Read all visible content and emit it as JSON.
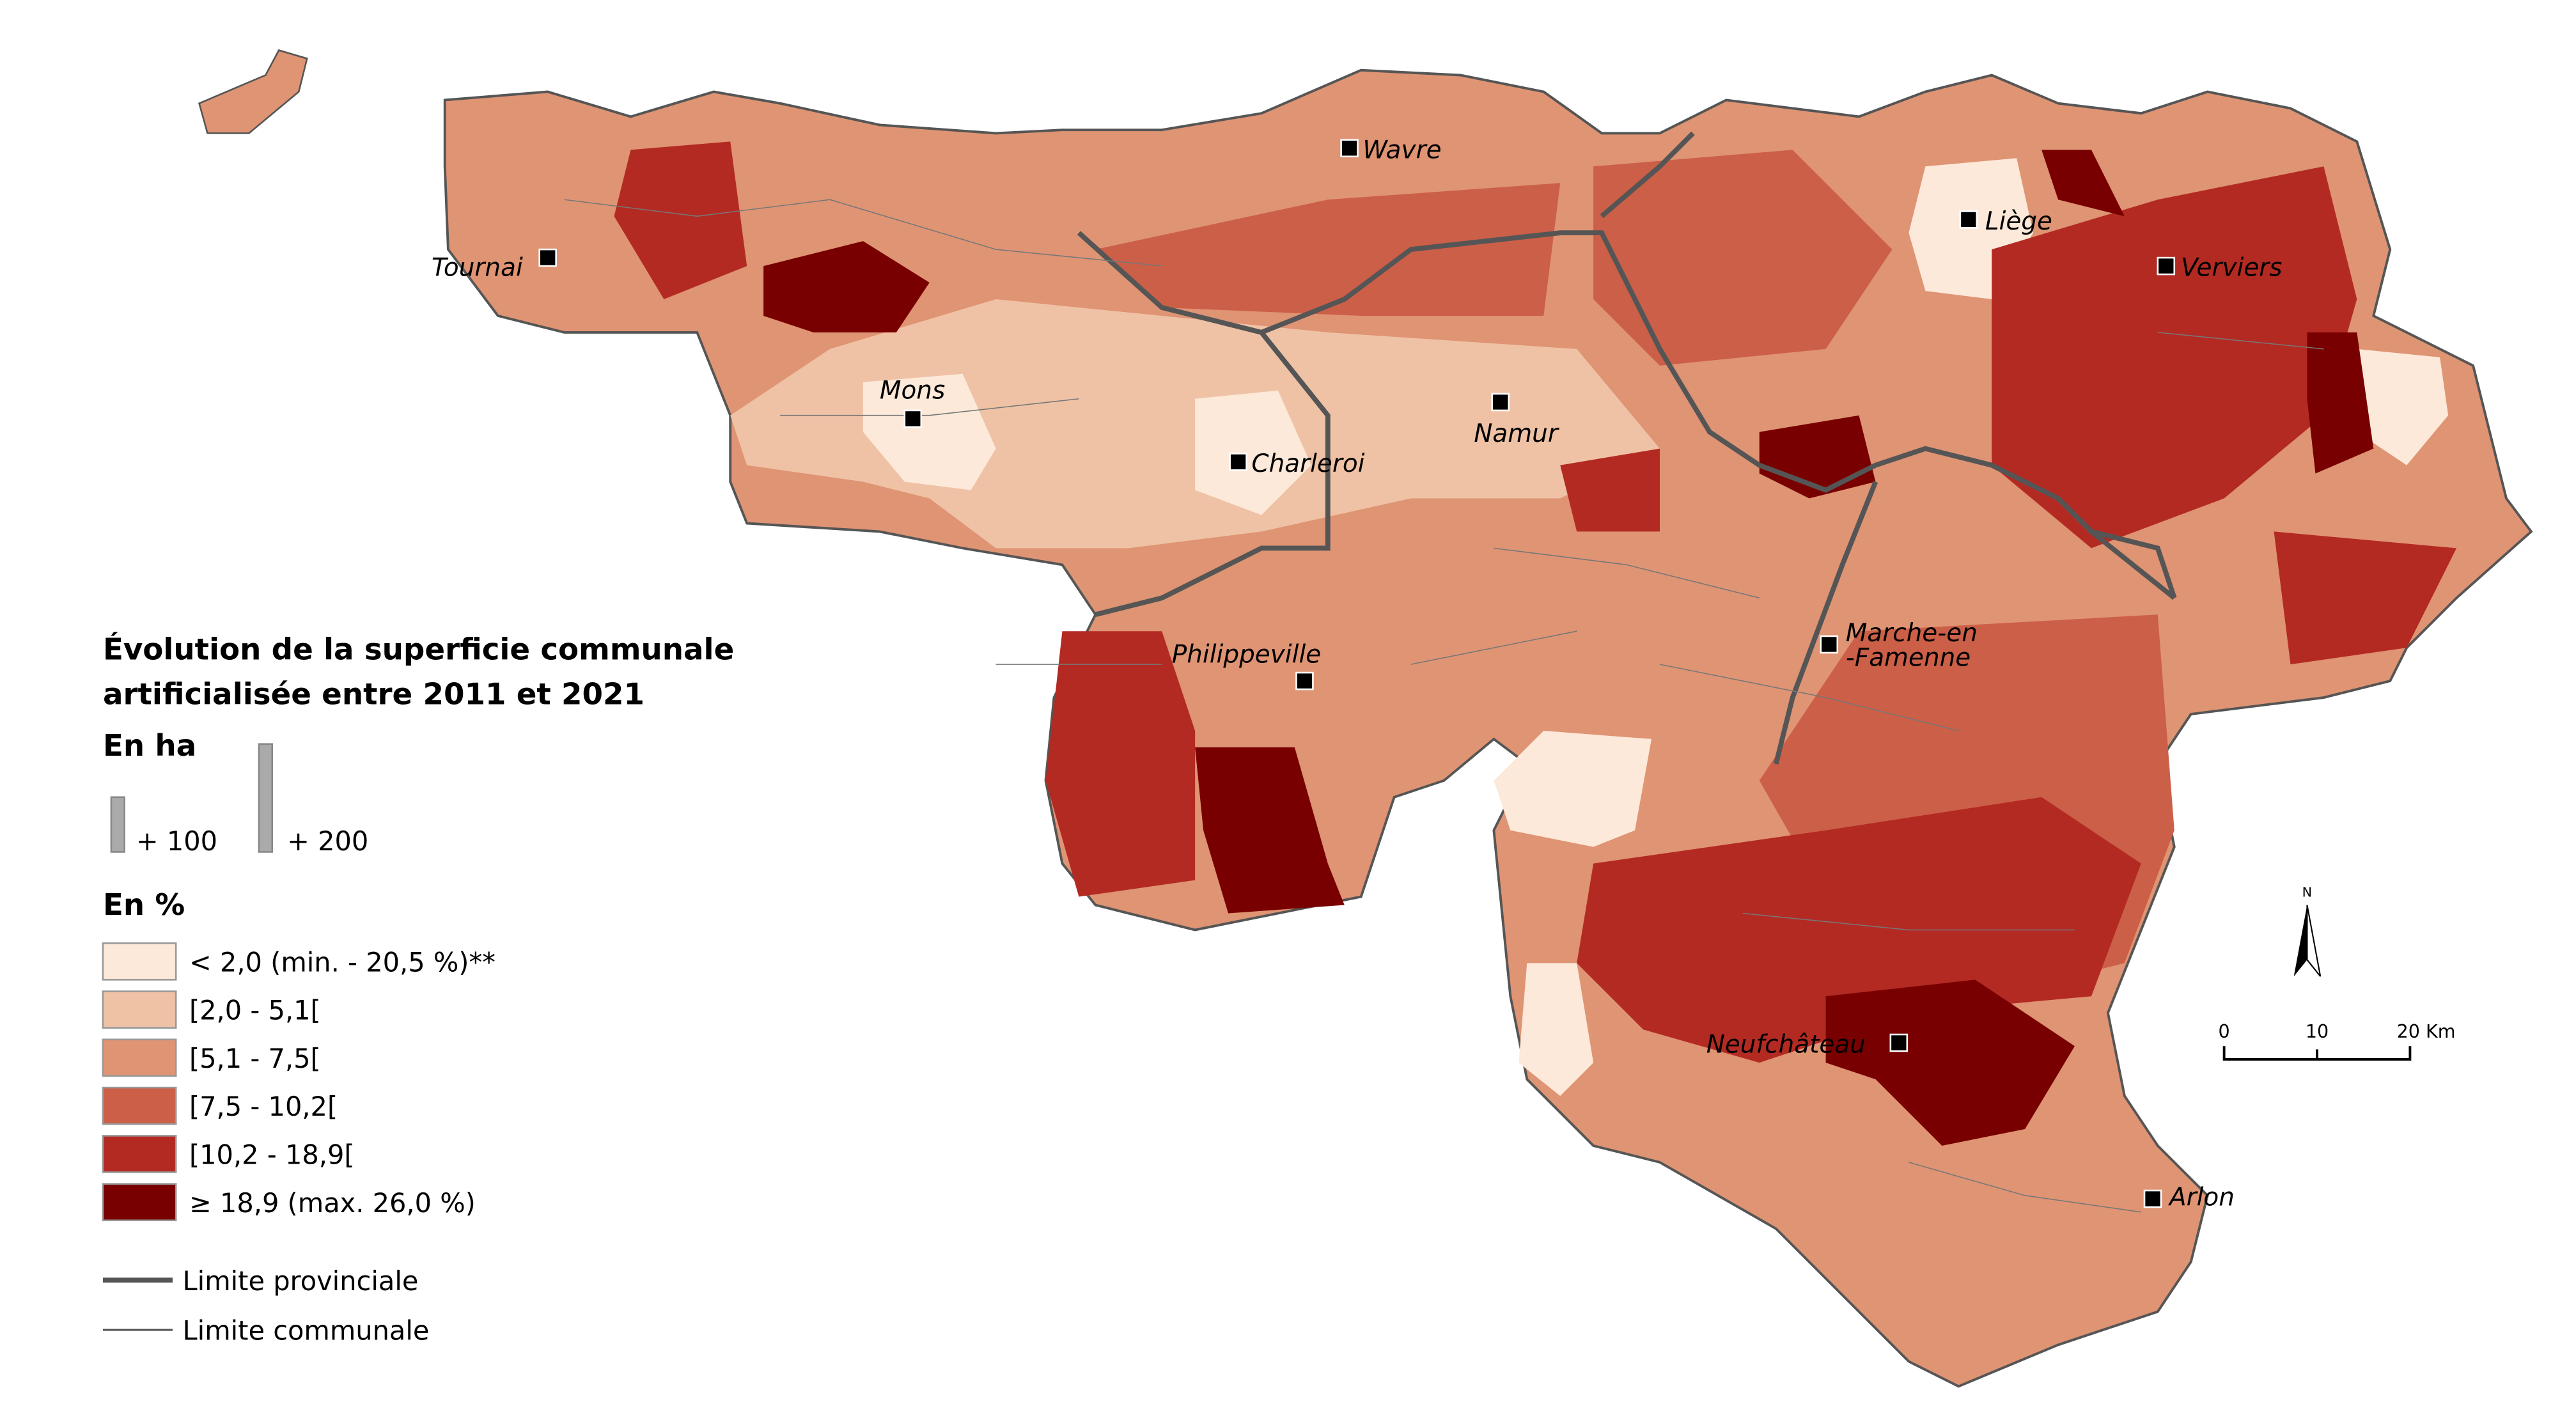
{
  "legend": {
    "title_lines": [
      "Évolution de la superficie communale",
      "artificialisée entre 2011 et 2021"
    ],
    "bars_heading": "En ha",
    "bar_labels": [
      "+ 100",
      "+ 200"
    ],
    "classes_heading": "En %",
    "classes": [
      {
        "label": "< 2,0 (min. - 20,5 %)**",
        "color": "#fde9d9"
      },
      {
        "label": "[2,0 - 5,1[",
        "color": "#efc2a6"
      },
      {
        "label": "[5,1 - 7,5[",
        "color": "#df9474"
      },
      {
        "label": "[7,5 - 10,2[",
        "color": "#cc5f47"
      },
      {
        "label": "[10,2 - 18,9[",
        "color": "#b32a23"
      },
      {
        "label": "≥ 18,9 (max. 26,0 %)",
        "color": "#780000"
      }
    ],
    "lines": [
      "Limite provinciale",
      "Limite communale"
    ]
  },
  "cities": [
    "Tournai",
    "Mons",
    "Charleroi",
    "Wavre",
    "Namur",
    "Liège",
    "Verviers",
    "Philippeville",
    "Marche-en\n-Famenne",
    "Neufchâteau",
    "Arlon"
  ],
  "scale": {
    "north": "N",
    "labels": [
      "0",
      "10",
      "20 Km"
    ]
  }
}
